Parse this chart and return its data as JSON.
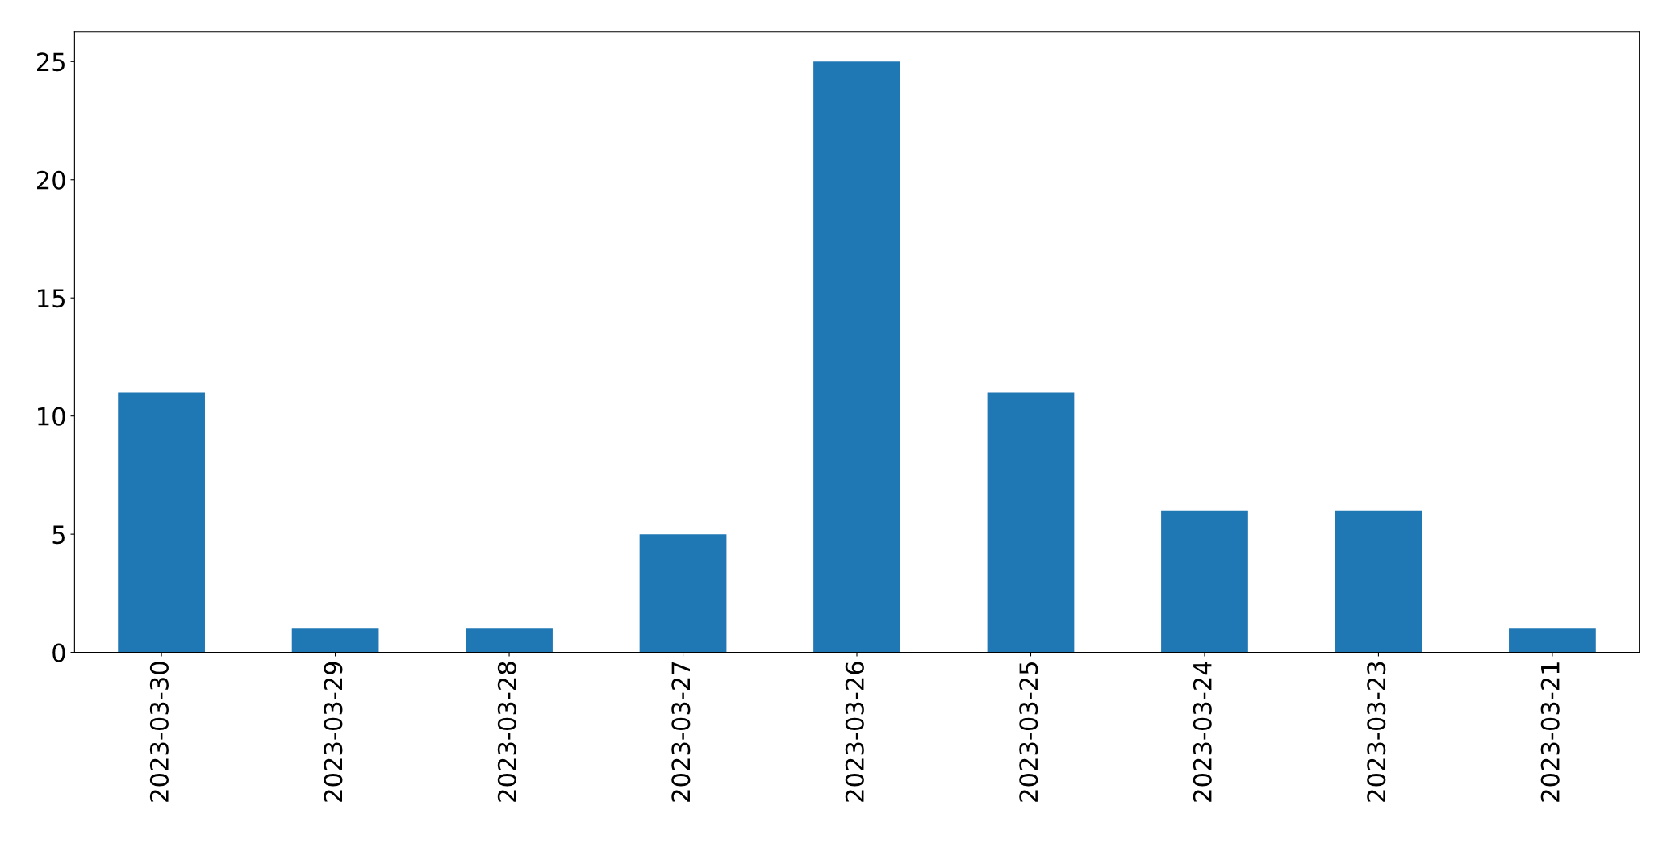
{
  "chart_data": {
    "type": "bar",
    "categories": [
      "2023-03-30",
      "2023-03-29",
      "2023-03-28",
      "2023-03-27",
      "2023-03-26",
      "2023-03-25",
      "2023-03-24",
      "2023-03-23",
      "2023-03-21"
    ],
    "values": [
      11,
      1,
      1,
      5,
      25,
      11,
      6,
      6,
      1
    ],
    "color": "#1f77b4",
    "ylim": [
      0,
      26.25
    ],
    "yticks": [
      0,
      5,
      10,
      15,
      20,
      25
    ],
    "grid": false
  }
}
